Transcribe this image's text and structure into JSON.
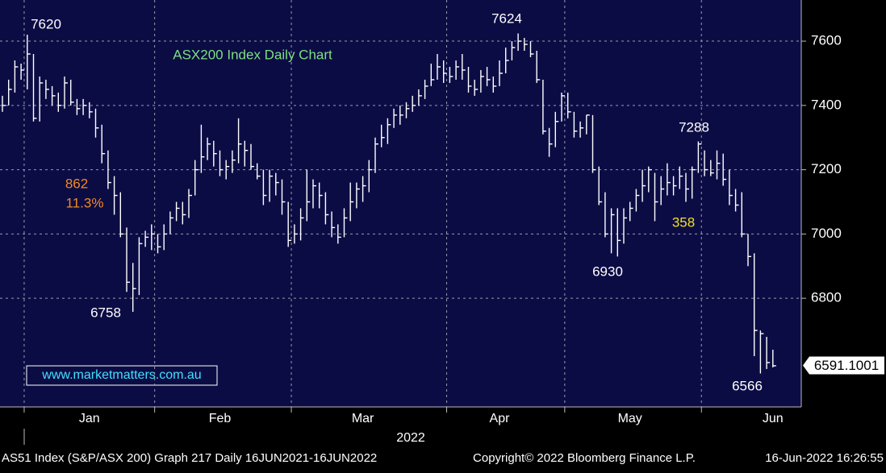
{
  "chart_data": {
    "type": "hlc",
    "title": "ASX200 Index Daily Chart",
    "title_color": "#7ee07e",
    "bar_color": "#ffffff",
    "categories": [
      null,
      null,
      null,
      null,
      null,
      null,
      null,
      null,
      null,
      null,
      null,
      null,
      null,
      null,
      "Jan",
      null,
      null,
      null,
      null,
      null,
      null,
      null,
      null,
      null,
      null,
      null,
      null,
      null,
      null,
      null,
      null,
      null,
      null,
      null,
      null,
      "Feb",
      null,
      null,
      null,
      null,
      null,
      null,
      null,
      null,
      null,
      null,
      null,
      null,
      null,
      null,
      null,
      null,
      null,
      null,
      null,
      null,
      null,
      null,
      "Mar",
      null,
      null,
      null,
      null,
      null,
      null,
      null,
      null,
      null,
      null,
      null,
      null,
      null,
      null,
      null,
      null,
      null,
      null,
      null,
      null,
      null,
      "Apr",
      null,
      null,
      null,
      null,
      null,
      null,
      null,
      null,
      null,
      null,
      null,
      null,
      null,
      null,
      null,
      null,
      null,
      null,
      null,
      null,
      "May",
      null,
      null,
      null,
      null,
      null,
      null,
      null,
      null,
      null,
      null,
      null,
      null,
      null,
      null,
      null,
      null,
      null,
      null,
      null,
      null,
      null,
      null,
      "Jun"
    ],
    "high": [
      7430,
      7480,
      7540,
      7530,
      7620,
      7560,
      7490,
      7480,
      7460,
      7440,
      7490,
      7480,
      7420,
      7420,
      7410,
      7390,
      7340,
      7260,
      7180,
      7130,
      7020,
      6910,
      6990,
      7010,
      7030,
      7000,
      7030,
      7070,
      7100,
      7100,
      7140,
      7230,
      7340,
      7300,
      7290,
      7260,
      7230,
      7260,
      7360,
      7290,
      7280,
      7220,
      7200,
      7200,
      7190,
      7170,
      7100,
      7030,
      7080,
      7200,
      7170,
      7160,
      7130,
      7070,
      7030,
      7080,
      7160,
      7160,
      7180,
      7230,
      7300,
      7340,
      7360,
      7390,
      7400,
      7410,
      7430,
      7450,
      7480,
      7530,
      7560,
      7540,
      7520,
      7540,
      7560,
      7520,
      7480,
      7510,
      7520,
      7490,
      7540,
      7580,
      7600,
      7624,
      7610,
      7600,
      7570,
      7480,
      7330,
      7380,
      7440,
      7440,
      7380,
      7350,
      7370,
      7370,
      7210,
      7130,
      7080,
      7080,
      7080,
      7100,
      7140,
      7200,
      7210,
      7190,
      7180,
      7220,
      7180,
      7210,
      7190,
      7210,
      7288,
      7260,
      7230,
      7260,
      7250,
      7200,
      7140,
      7130,
      7000,
      6940,
      6700,
      6680,
      6640
    ],
    "low": [
      7380,
      7400,
      7440,
      7480,
      7450,
      7350,
      7350,
      7420,
      7400,
      7380,
      7390,
      7400,
      7370,
      7370,
      7360,
      7300,
      7220,
      7140,
      7060,
      6990,
      6820,
      6758,
      6810,
      6960,
      6950,
      6940,
      6950,
      7000,
      7040,
      7030,
      7050,
      7120,
      7190,
      7230,
      7210,
      7180,
      7170,
      7190,
      7220,
      7210,
      7200,
      7170,
      7090,
      7100,
      7120,
      7060,
      6960,
      6970,
      6980,
      7040,
      7080,
      7080,
      7030,
      6990,
      6970,
      6990,
      7040,
      7080,
      7100,
      7130,
      7190,
      7270,
      7280,
      7330,
      7340,
      7360,
      7380,
      7400,
      7420,
      7460,
      7480,
      7470,
      7470,
      7480,
      7480,
      7440,
      7430,
      7440,
      7460,
      7440,
      7460,
      7500,
      7540,
      7570,
      7570,
      7550,
      7470,
      7310,
      7240,
      7270,
      7350,
      7360,
      7300,
      7300,
      7310,
      7190,
      7090,
      6990,
      6940,
      6930,
      6970,
      7040,
      7070,
      7100,
      7130,
      7040,
      7090,
      7120,
      7120,
      7140,
      7100,
      7110,
      7190,
      7180,
      7180,
      7170,
      7150,
      7090,
      7070,
      6990,
      6900,
      6620,
      6566,
      6580,
      6585
    ],
    "close": [
      7400,
      7450,
      7520,
      7510,
      7560,
      7360,
      7470,
      7450,
      7430,
      7400,
      7470,
      7410,
      7390,
      7400,
      7380,
      7330,
      7250,
      7160,
      7120,
      7000,
      6850,
      6830,
      6970,
      6990,
      7000,
      6960,
      7000,
      7050,
      7080,
      7060,
      7120,
      7200,
      7240,
      7280,
      7250,
      7200,
      7210,
      7230,
      7280,
      7260,
      7210,
      7180,
      7120,
      7180,
      7160,
      7100,
      6980,
      7000,
      7050,
      7100,
      7150,
      7120,
      7060,
      7020,
      6990,
      7050,
      7100,
      7140,
      7150,
      7200,
      7280,
      7300,
      7340,
      7370,
      7370,
      7390,
      7400,
      7430,
      7460,
      7480,
      7520,
      7500,
      7490,
      7520,
      7510,
      7460,
      7450,
      7490,
      7480,
      7460,
      7500,
      7540,
      7580,
      7600,
      7590,
      7560,
      7480,
      7320,
      7280,
      7350,
      7430,
      7380,
      7320,
      7330,
      7370,
      7200,
      7100,
      7000,
      7060,
      6980,
      7050,
      7080,
      7120,
      7150,
      7200,
      7100,
      7140,
      7160,
      7150,
      7180,
      7140,
      7200,
      7280,
      7200,
      7190,
      7220,
      7170,
      7120,
      7090,
      7000,
      6930,
      6700,
      6690,
      6600,
      6590
    ],
    "ylim": [
      6462,
      7728
    ],
    "yticks": [
      6800,
      7000,
      7200,
      7400,
      7600
    ],
    "grid": true,
    "x_label": "2022",
    "last_price": 6591.1001,
    "annotations": [
      {
        "text": "7620",
        "color": "#ffffff"
      },
      {
        "text": "7624",
        "color": "#ffffff"
      },
      {
        "text": "6758",
        "color": "#ffffff"
      },
      {
        "text": "6930",
        "color": "#ffffff"
      },
      {
        "text": "7288",
        "color": "#ffffff"
      },
      {
        "text": "6566",
        "color": "#ffffff"
      },
      {
        "text": "862",
        "color": "#f08a24"
      },
      {
        "text": "11.3%",
        "color": "#f08a24"
      },
      {
        "text": "358",
        "color": "#f2e01c"
      }
    ]
  },
  "watermark": "www.marketmatters.com.au",
  "footer": {
    "left": "AS51 Index (S&P/ASX 200) Graph 217  Daily 16JUN2021-16JUN2022",
    "center": "Copyright© 2022 Bloomberg Finance L.P.",
    "right": "16-Jun-2022 16:26:55"
  }
}
